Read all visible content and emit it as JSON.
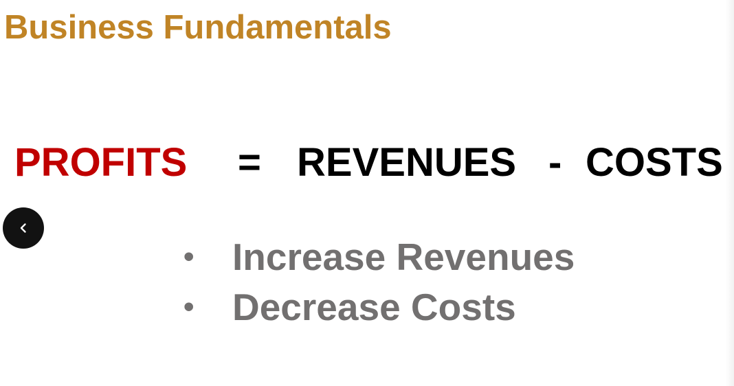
{
  "slide": {
    "title": "Business Fundamentals",
    "equation": {
      "profits": "PROFITS",
      "equals": "=",
      "revenues": "REVENUES",
      "minus": "-",
      "costs": "COSTS"
    },
    "bullets": [
      {
        "marker": "•",
        "text": "Increase Revenues"
      },
      {
        "marker": "•",
        "text": "Decrease Costs"
      }
    ]
  },
  "navigation": {
    "prev_icon": "chevron-left-icon"
  },
  "colors": {
    "title": "#c08426",
    "profits": "#c00000",
    "equation": "#000000",
    "bullets": "#727070",
    "nav_button": "#121212"
  }
}
